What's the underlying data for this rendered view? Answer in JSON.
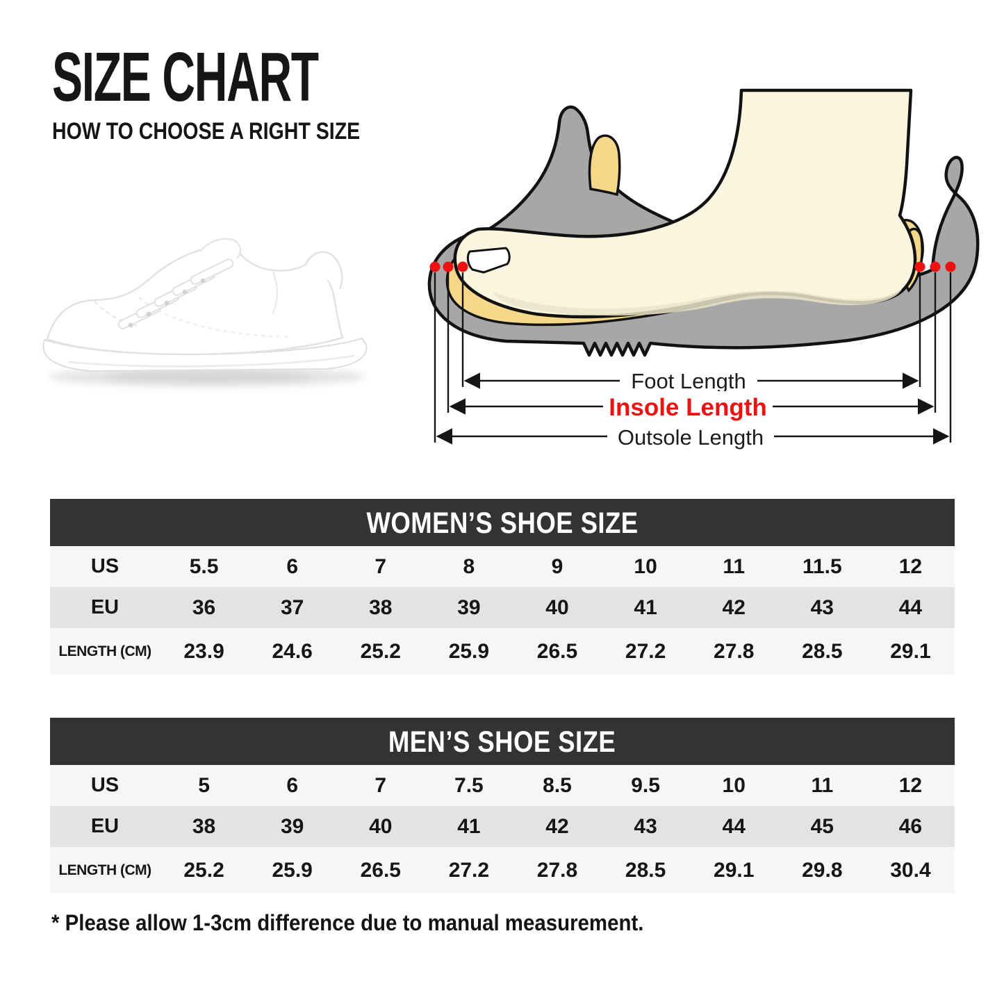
{
  "page": {
    "title": "SIZE CHART",
    "subtitle": "HOW TO CHOOSE A RIGHT SIZE",
    "footnote": "* Please allow 1-3cm difference due to manual measurement."
  },
  "colors": {
    "table_header_bg": "#333333",
    "row_light": "#f6f6f5",
    "row_shaded": "#e4e3e1",
    "accent_red": "#ee1111",
    "sole_gray": "#a7a7a7",
    "insole_yellow": "#f6d88a",
    "foot_cream": "#f9f5de",
    "outline_black": "#121212"
  },
  "diagram": {
    "foot_length_label": "Foot Length",
    "insole_length_label": "Insole Length",
    "outsole_length_label": "Outsole Length"
  },
  "tables": [
    {
      "title": "WOMEN’S SHOE SIZE",
      "rows": [
        {
          "label": "US",
          "values": [
            "5.5",
            "6",
            "7",
            "8",
            "9",
            "10",
            "11",
            "11.5",
            "12"
          ]
        },
        {
          "label": "EU",
          "values": [
            "36",
            "37",
            "38",
            "39",
            "40",
            "41",
            "42",
            "43",
            "44"
          ]
        },
        {
          "label": "LENGTH (CM)",
          "values": [
            "23.9",
            "24.6",
            "25.2",
            "25.9",
            "26.5",
            "27.2",
            "27.8",
            "28.5",
            "29.1"
          ]
        }
      ]
    },
    {
      "title": "MEN’S SHOE SIZE",
      "rows": [
        {
          "label": "US",
          "values": [
            "5",
            "6",
            "7",
            "7.5",
            "8.5",
            "9.5",
            "10",
            "11",
            "12"
          ]
        },
        {
          "label": "EU",
          "values": [
            "38",
            "39",
            "40",
            "41",
            "42",
            "43",
            "44",
            "45",
            "46"
          ]
        },
        {
          "label": "LENGTH (CM)",
          "values": [
            "25.2",
            "25.9",
            "26.5",
            "27.2",
            "27.8",
            "28.5",
            "29.1",
            "29.8",
            "30.4"
          ]
        }
      ]
    }
  ]
}
